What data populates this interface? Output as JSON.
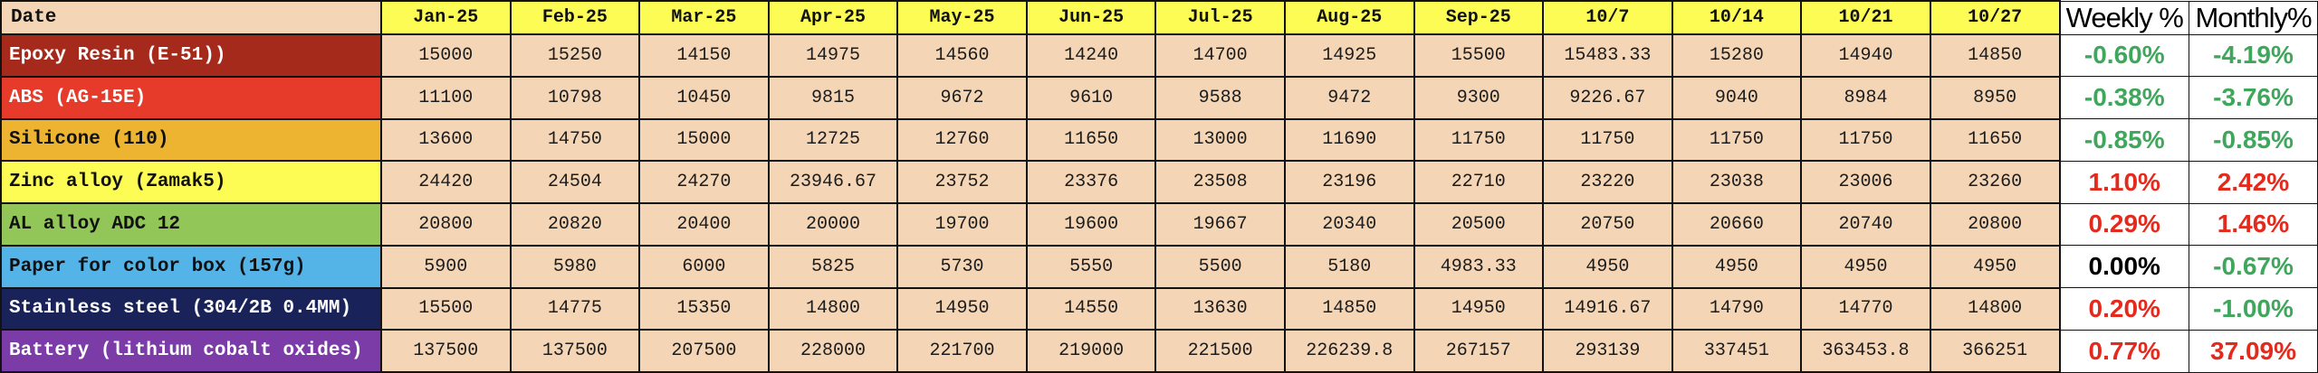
{
  "header": {
    "date": "Date",
    "weekly": "Weekly %",
    "monthly": "Monthly%"
  },
  "colors": {
    "cell_peach": "#F4D6B6",
    "header_yellow": "#FCFC54",
    "pct_green": "#3FA75C",
    "pct_red": "#E32A1D",
    "pct_black": "#000000",
    "border_black": "#121212"
  },
  "chart_data": {
    "type": "table",
    "title": "Material price tracking by month with weekly and monthly change",
    "columns": [
      "Jan-25",
      "Feb-25",
      "Mar-25",
      "Apr-25",
      "May-25",
      "Jun-25",
      "Jul-25",
      "Aug-25",
      "Sep-25",
      "10/7",
      "10/14",
      "10/21",
      "10/27"
    ],
    "series": [
      {
        "name": "Epoxy Resin (E-51))",
        "bg": "#A62A1B",
        "fg": "#FFFFFF",
        "values": [
          15000,
          15250,
          14150,
          14975,
          14560,
          14240,
          14700,
          14925,
          15500,
          15483.33,
          15280,
          14940,
          14850
        ],
        "weekly": "-0.60%",
        "weekly_color": "#3FA75C",
        "monthly": "-4.19%",
        "monthly_color": "#3FA75C"
      },
      {
        "name": "ABS (AG-15E)",
        "bg": "#E63B2A",
        "fg": "#FFFFFF",
        "values": [
          11100,
          10798,
          10450,
          9815,
          9672,
          9610,
          9588,
          9472,
          9300,
          9226.67,
          9040,
          8984,
          8950
        ],
        "weekly": "-0.38%",
        "weekly_color": "#3FA75C",
        "monthly": "-3.76%",
        "monthly_color": "#3FA75C"
      },
      {
        "name": "Silicone (110)",
        "bg": "#EDB431",
        "fg": "#111111",
        "values": [
          13600,
          14750,
          15000,
          12725,
          12760,
          11650,
          13000,
          11690,
          11750,
          11750,
          11750,
          11750,
          11650
        ],
        "weekly": "-0.85%",
        "weekly_color": "#3FA75C",
        "monthly": "-0.85%",
        "monthly_color": "#3FA75C"
      },
      {
        "name": "Zinc alloy (Zamak5)",
        "bg": "#FCFC54",
        "fg": "#111111",
        "values": [
          24420,
          24504,
          24270,
          23946.67,
          23752,
          23376,
          23508,
          23196,
          22710,
          23220,
          23038,
          23006,
          23260
        ],
        "weekly": "1.10%",
        "weekly_color": "#E32A1D",
        "monthly": "2.42%",
        "monthly_color": "#E32A1D"
      },
      {
        "name": "AL alloy ADC 12",
        "bg": "#93C659",
        "fg": "#111111",
        "values": [
          20800,
          20820,
          20400,
          20000,
          19700,
          19600,
          19667,
          20340,
          20500,
          20750,
          20660,
          20740,
          20800
        ],
        "weekly": "0.29%",
        "weekly_color": "#E32A1D",
        "monthly": "1.46%",
        "monthly_color": "#E32A1D"
      },
      {
        "name": "Paper for color box (157g)",
        "bg": "#54B4E8",
        "fg": "#111111",
        "values": [
          5900,
          5980,
          6000,
          5825,
          5730,
          5550,
          5500,
          5180,
          4983.33,
          4950,
          4950,
          4950,
          4950
        ],
        "weekly": "0.00%",
        "weekly_color": "#000000",
        "monthly": "-0.67%",
        "monthly_color": "#3FA75C"
      },
      {
        "name": "Stainless steel (304/2B 0.4MM)",
        "bg": "#1A2359",
        "fg": "#FFFFFF",
        "values": [
          15500,
          14775,
          15350,
          14800,
          14950,
          14550,
          13630,
          14850,
          14950,
          14916.67,
          14790,
          14770,
          14800
        ],
        "weekly": "0.20%",
        "weekly_color": "#E32A1D",
        "monthly": "-1.00%",
        "monthly_color": "#3FA75C"
      },
      {
        "name": "Battery (lithium cobalt oxides)",
        "bg": "#7B3CA8",
        "fg": "#FFFFFF",
        "values": [
          137500,
          137500,
          207500,
          228000,
          221700,
          219000,
          221500,
          226239.8,
          267157,
          293139,
          337451,
          363453.8,
          366251
        ],
        "weekly": "0.77%",
        "weekly_color": "#E32A1D",
        "monthly": "37.09%",
        "monthly_color": "#E32A1D"
      }
    ]
  }
}
